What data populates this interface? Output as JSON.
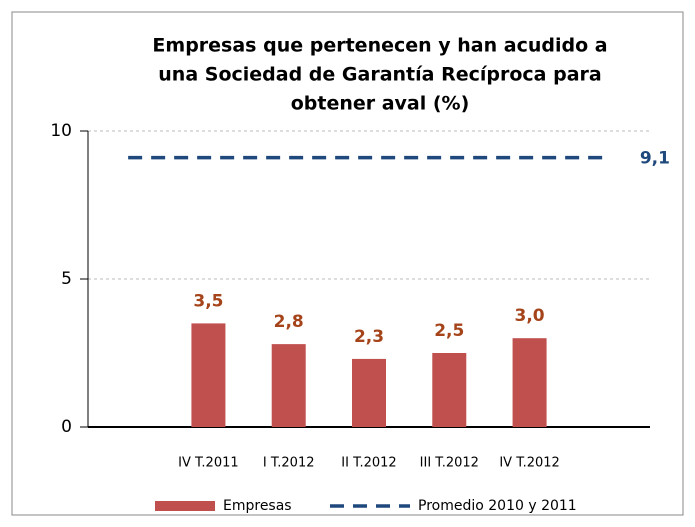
{
  "chart_data": {
    "type": "bar",
    "title": [
      "Empresas que pertenecen y han acudido a",
      "una Sociedad de Garantía Recíproca para",
      "obtener aval (%)"
    ],
    "categories": [
      null,
      "IV T.2011",
      "I T.2012",
      "II T.2012",
      "III T.2012",
      "IV T.2012",
      null
    ],
    "series": [
      {
        "name": "Empresas",
        "type": "bar",
        "color": "#c0504d",
        "label_color": "#a5441a",
        "values": [
          null,
          3.5,
          2.8,
          2.3,
          2.5,
          3.0,
          null
        ],
        "value_labels": [
          null,
          "3,5",
          "2,8",
          "2,3",
          "2,5",
          "3,0",
          null
        ]
      },
      {
        "name": "Promedio 2010 y 2011",
        "type": "line",
        "color": "#1f497d",
        "label_color": "#1f497d",
        "values": [
          9.1,
          9.1,
          9.1,
          9.1,
          9.1,
          9.1,
          9.1
        ],
        "value_labels": [
          null,
          null,
          null,
          null,
          null,
          null,
          "9,1"
        ]
      }
    ],
    "ylim": [
      0,
      10
    ],
    "yticks": [
      0,
      5,
      10
    ],
    "grid": true,
    "legend": "bottom"
  }
}
